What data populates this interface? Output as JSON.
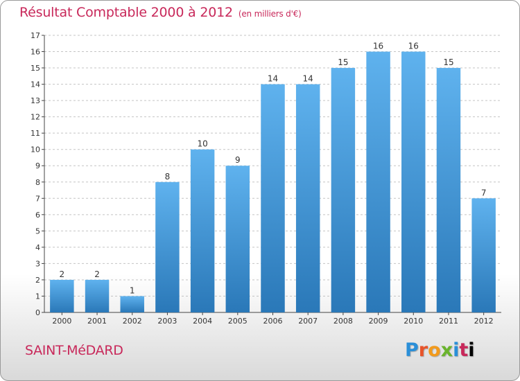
{
  "header": {
    "title": "Résultat Comptable 2000 à 2012",
    "subtitle": "(en milliers d'€)"
  },
  "footer": {
    "city": "SAINT-MéDARD",
    "brand": [
      "P",
      "r",
      "o",
      "x",
      "i",
      "t",
      "i"
    ]
  },
  "colors": {
    "accent": "#c8285a",
    "bar_light": "#5aaeea",
    "bar_dark": "#2a78b8"
  },
  "chart_data": {
    "type": "bar",
    "title": "Résultat Comptable 2000 à 2012",
    "subtitle": "(en milliers d'€)",
    "xlabel": "",
    "ylabel": "",
    "categories": [
      "2000",
      "2001",
      "2002",
      "2003",
      "2004",
      "2005",
      "2006",
      "2007",
      "2008",
      "2009",
      "2010",
      "2011",
      "2012"
    ],
    "values": [
      2,
      2,
      1,
      8,
      10,
      9,
      14,
      14,
      15,
      16,
      16,
      15,
      7
    ],
    "ylim": [
      0,
      17
    ],
    "yticks": [
      0,
      1,
      2,
      3,
      4,
      5,
      6,
      7,
      8,
      9,
      10,
      11,
      12,
      13,
      14,
      15,
      16,
      17
    ],
    "grid": true,
    "data_labels": true
  }
}
